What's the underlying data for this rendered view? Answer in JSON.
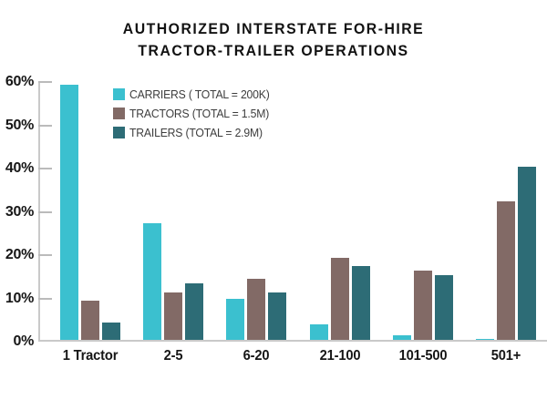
{
  "title": {
    "line1": "AUTHORIZED INTERSTATE FOR-HIRE",
    "line2": "TRACTOR-TRAILER OPERATIONS"
  },
  "chart_data": {
    "type": "bar",
    "title": "AUTHORIZED INTERSTATE FOR-HIRE TRACTOR-TRAILER OPERATIONS",
    "categories": [
      "1 Tractor",
      "2-5",
      "6-20",
      "21-100",
      "101-500",
      "501+"
    ],
    "series": [
      {
        "name": "CARRIERS ( TOTAL = 200K)",
        "color": "#3BC0CF",
        "values": [
          59,
          27,
          9.5,
          3.5,
          1,
          0.2
        ]
      },
      {
        "name": "TRACTORS (TOTAL = 1.5M)",
        "color": "#826A66",
        "values": [
          9,
          11,
          14,
          19,
          16,
          32
        ]
      },
      {
        "name": "TRAILERS (TOTAL = 2.9M)",
        "color": "#2D6C76",
        "values": [
          4,
          13,
          11,
          17,
          15,
          40
        ]
      }
    ],
    "y_tick_labels": [
      "60%",
      "50%",
      "40%",
      "30%",
      "20%",
      "10%",
      "0%"
    ],
    "ylim": [
      0,
      60
    ],
    "xlabel": "",
    "ylabel": "",
    "grid": false,
    "legend_position": "inside-upper-left"
  },
  "colors": {
    "background": "#FFFFFF",
    "axis_line": "#C9C9C9",
    "tick_mark": "#BBBBBB",
    "title_text": "#121212",
    "axis_text": "#161616",
    "legend_text": "#3D3D3D"
  }
}
